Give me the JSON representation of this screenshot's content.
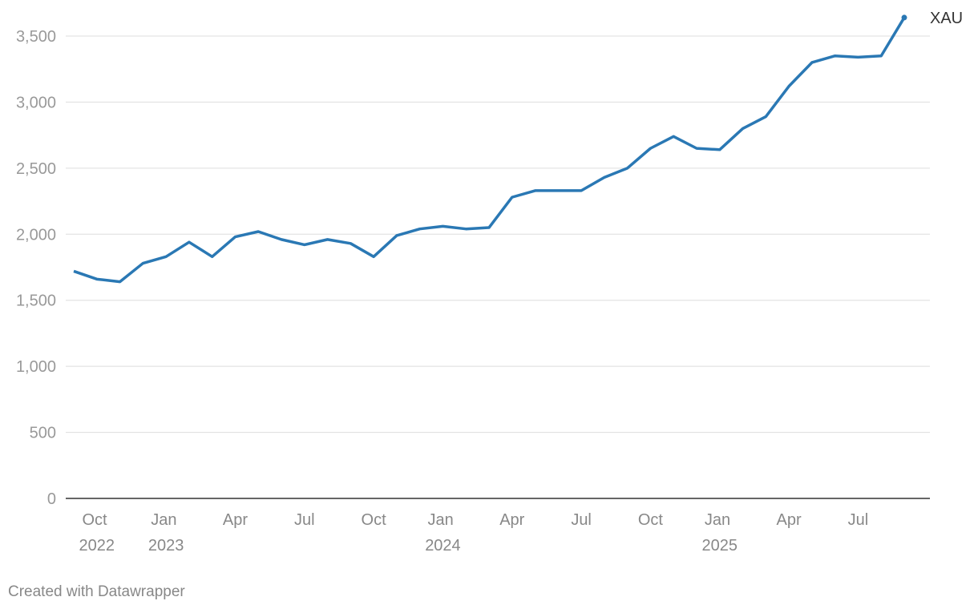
{
  "chart_data": {
    "type": "line",
    "x": [
      "2022-09",
      "2022-10",
      "2022-11",
      "2022-12",
      "2023-01",
      "2023-02",
      "2023-03",
      "2023-04",
      "2023-05",
      "2023-06",
      "2023-07",
      "2023-08",
      "2023-09",
      "2023-10",
      "2023-11",
      "2023-12",
      "2024-01",
      "2024-02",
      "2024-03",
      "2024-04",
      "2024-05",
      "2024-06",
      "2024-07",
      "2024-08",
      "2024-09",
      "2024-10",
      "2024-11",
      "2024-12",
      "2025-01",
      "2025-02",
      "2025-03",
      "2025-04",
      "2025-05",
      "2025-06",
      "2025-07",
      "2025-08",
      "2025-09"
    ],
    "series": [
      {
        "name": "XAU",
        "color": "#2a78b4",
        "values": [
          1720,
          1660,
          1640,
          1780,
          1830,
          1940,
          1830,
          1980,
          2020,
          1960,
          1920,
          1960,
          1930,
          1830,
          1990,
          2040,
          2060,
          2040,
          2050,
          2280,
          2330,
          2330,
          2330,
          2430,
          2500,
          2650,
          2740,
          2650,
          2640,
          2800,
          2890,
          3120,
          3300,
          3350,
          3340,
          3350,
          3640
        ]
      }
    ],
    "xlim": [
      "2022-09",
      "2025-09"
    ],
    "xticks": [
      {
        "value": "2022-10",
        "label": "Oct 2022"
      },
      {
        "value": "2023-01",
        "label": "Jan 2023"
      },
      {
        "value": "2023-04",
        "label": "Apr"
      },
      {
        "value": "2023-07",
        "label": "Jul"
      },
      {
        "value": "2023-10",
        "label": "Oct"
      },
      {
        "value": "2024-01",
        "label": "Jan 2024"
      },
      {
        "value": "2024-04",
        "label": "Apr"
      },
      {
        "value": "2024-07",
        "label": "Jul"
      },
      {
        "value": "2024-10",
        "label": "Oct"
      },
      {
        "value": "2025-01",
        "label": "Jan 2025"
      },
      {
        "value": "2025-04",
        "label": "Apr"
      },
      {
        "value": "2025-07",
        "label": "Jul"
      }
    ],
    "ylim": [
      0,
      3500
    ],
    "yticks": [
      0,
      500,
      {
        "value": 1000,
        "label": "1,000"
      },
      {
        "value": 1500,
        "label": "1,500"
      },
      {
        "value": 2000,
        "label": "2,000"
      },
      {
        "value": 2500,
        "label": "2,500"
      },
      {
        "value": 3000,
        "label": "3,000"
      },
      {
        "value": 3500,
        "label": "3,500"
      }
    ],
    "grid": true,
    "credit": "Created with Datawrapper"
  }
}
